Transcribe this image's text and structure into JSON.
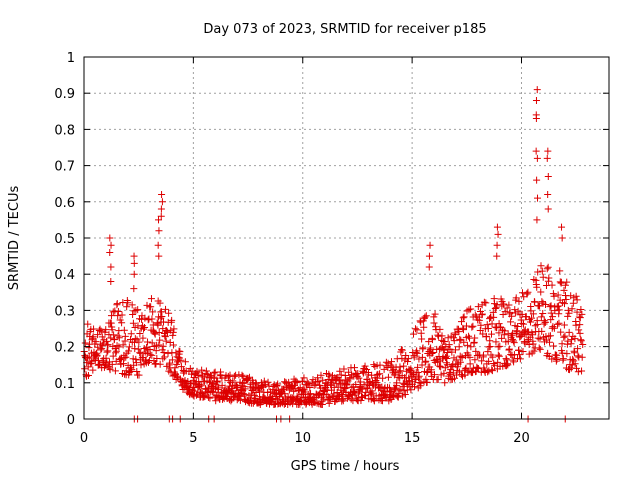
{
  "chart_data": {
    "type": "scatter",
    "title": "Day 073 of 2023, SRMTID for receiver p185",
    "xlabel": "GPS time / hours",
    "ylabel": "SRMTID / TECUs",
    "xlim": [
      0,
      24
    ],
    "ylim": [
      0,
      1
    ],
    "xticks": [
      0,
      5,
      10,
      15,
      20
    ],
    "yticks": [
      0,
      0.1,
      0.2,
      0.3,
      0.4,
      0.5,
      0.6,
      0.7,
      0.8,
      0.9,
      1
    ],
    "xtick_labels": [
      "0",
      "5",
      "10",
      "15",
      "20"
    ],
    "ytick_labels": [
      "0",
      "0.1",
      "0.2",
      "0.3",
      "0.4",
      "0.5",
      "0.6",
      "0.7",
      "0.8",
      "0.9",
      "1"
    ],
    "grid": true,
    "marker": "+",
    "marker_color": "#dd0000",
    "series": [
      {
        "name": "SRMTID",
        "envelope_hours": [
          0,
          0.5,
          1,
          1.5,
          2,
          2.5,
          3,
          3.5,
          4,
          4.5,
          5,
          5.5,
          6,
          7,
          8,
          9,
          10,
          11,
          12,
          13,
          14,
          14.5,
          15,
          15.5,
          16,
          16.5,
          17,
          17.5,
          18,
          18.5,
          19,
          19.5,
          20,
          20.5,
          21,
          21.5,
          22,
          22.5,
          23
        ],
        "envelope_low": [
          0.1,
          0.14,
          0.14,
          0.13,
          0.12,
          0.12,
          0.15,
          0.15,
          0.12,
          0.08,
          0.06,
          0.06,
          0.05,
          0.05,
          0.04,
          0.04,
          0.04,
          0.04,
          0.05,
          0.05,
          0.05,
          0.06,
          0.08,
          0.09,
          0.1,
          0.1,
          0.11,
          0.12,
          0.12,
          0.13,
          0.14,
          0.15,
          0.16,
          0.18,
          0.18,
          0.16,
          0.14,
          0.13,
          0.11
        ],
        "envelope_high": [
          0.27,
          0.25,
          0.26,
          0.32,
          0.33,
          0.3,
          0.35,
          0.33,
          0.28,
          0.18,
          0.13,
          0.14,
          0.13,
          0.13,
          0.11,
          0.1,
          0.12,
          0.13,
          0.14,
          0.15,
          0.16,
          0.2,
          0.25,
          0.28,
          0.3,
          0.22,
          0.25,
          0.3,
          0.33,
          0.32,
          0.35,
          0.33,
          0.35,
          0.38,
          0.45,
          0.44,
          0.4,
          0.35,
          0.25
        ],
        "spikes": [
          {
            "x": 1.2,
            "values": [
              0.38,
              0.42,
              0.46,
              0.48,
              0.5
            ]
          },
          {
            "x": 2.3,
            "values": [
              0.36,
              0.4,
              0.43,
              0.45
            ]
          },
          {
            "x": 3.4,
            "values": [
              0.45,
              0.48,
              0.52,
              0.55
            ]
          },
          {
            "x": 3.55,
            "values": [
              0.56,
              0.58,
              0.6,
              0.62
            ]
          },
          {
            "x": 15.8,
            "values": [
              0.42,
              0.45,
              0.48
            ]
          },
          {
            "x": 18.9,
            "values": [
              0.45,
              0.48,
              0.51,
              0.53
            ]
          },
          {
            "x": 20.7,
            "values": [
              0.55,
              0.61,
              0.66,
              0.72,
              0.74,
              0.83,
              0.84,
              0.88,
              0.91
            ]
          },
          {
            "x": 21.2,
            "values": [
              0.58,
              0.62,
              0.67,
              0.72,
              0.74
            ]
          },
          {
            "x": 21.85,
            "values": [
              0.5,
              0.53
            ]
          }
        ],
        "zero_points": [
          2.3,
          2.45,
          3.9,
          4.05,
          4.4,
          5.7,
          5.95,
          8.8,
          9.0,
          9.4,
          20.3,
          22.0
        ]
      }
    ]
  }
}
